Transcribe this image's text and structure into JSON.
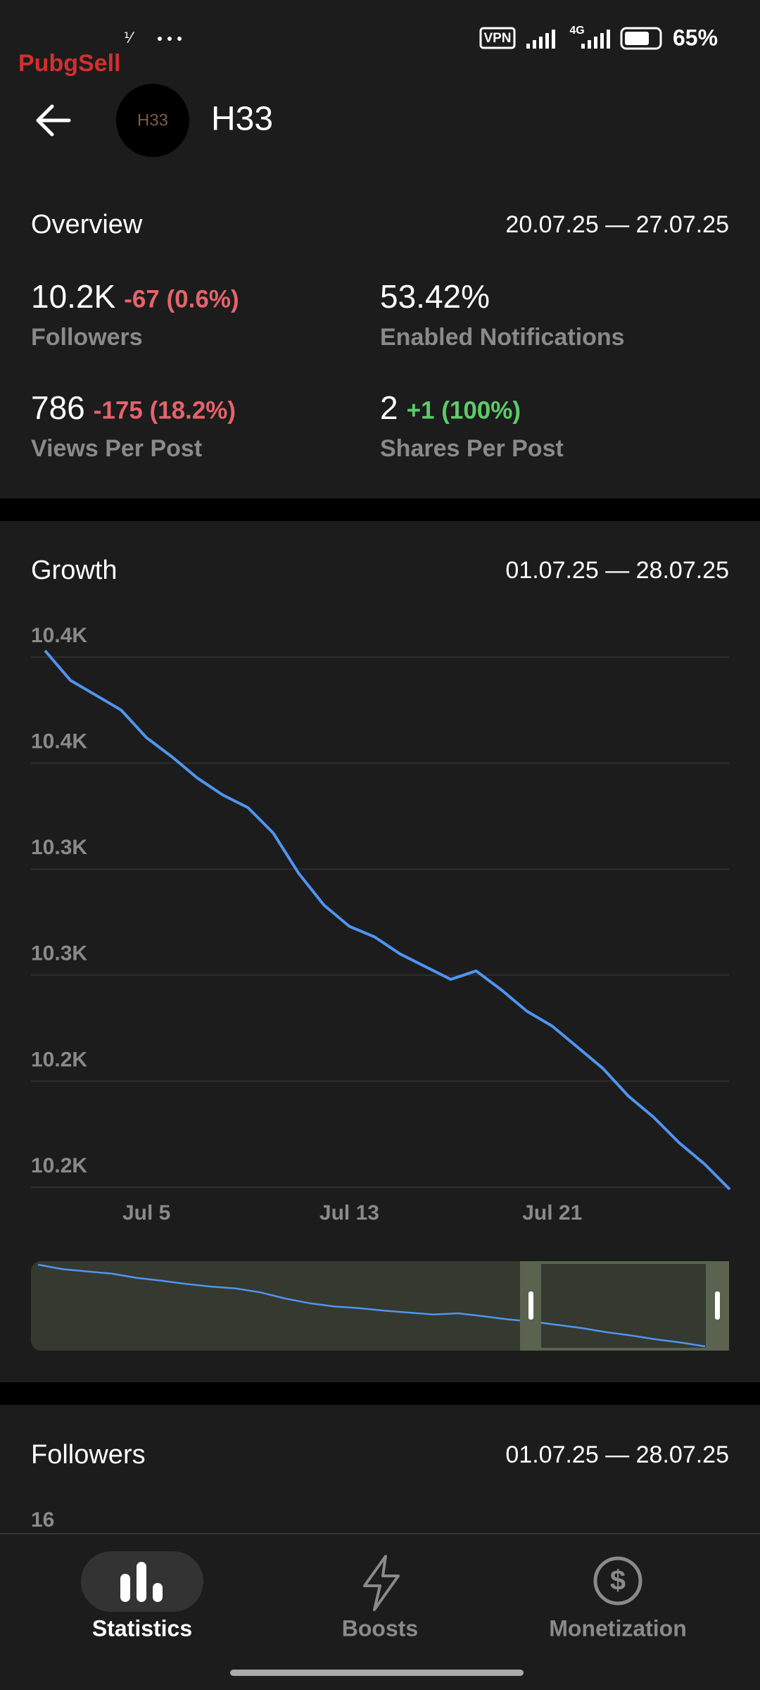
{
  "status_bar": {
    "watermark": "PubgSell",
    "vpn": "VPN",
    "network": "4G",
    "battery": "65%"
  },
  "header": {
    "avatar": "H33",
    "title": "H33"
  },
  "overview": {
    "title": "Overview",
    "date_range": "20.07.25 — 27.07.25",
    "stats": [
      {
        "value": "10.2K",
        "change": "-67 (0.6%)",
        "label": "Followers"
      },
      {
        "value": "53.42%",
        "label": "Enabled Notifications"
      },
      {
        "value": "786",
        "change": "-175 (18.2%)",
        "label": "Views Per Post"
      },
      {
        "value": "2",
        "change": "+1 (100%)",
        "label": "Shares Per Post"
      }
    ]
  },
  "chart_data": {
    "type": "line",
    "title": "Growth",
    "subtitle": "01.07.25 — 28.07.25",
    "categories": [
      null,
      null,
      null,
      null,
      "Jul 5",
      null,
      null,
      null,
      null,
      null,
      null,
      null,
      "Jul 13",
      null,
      null,
      null,
      null,
      null,
      null,
      null,
      "Jul 21",
      null,
      null,
      null,
      null,
      null,
      null,
      null
    ],
    "values": [
      10453,
      10439,
      10432,
      10425,
      10412,
      10403,
      10393,
      10385,
      10379,
      10367,
      10348,
      10333,
      10323,
      10318,
      10310,
      10304,
      10298,
      10302,
      10293,
      10283,
      10276,
      10266,
      10256,
      10243,
      10233,
      10221,
      10211,
      10199
    ],
    "color": "#4f95f0",
    "ylim": [
      10200,
      10450
    ],
    "yticks": [
      {
        "value": 10200,
        "label": "10.2K"
      },
      {
        "value": 10250,
        "label": "10.2K"
      },
      {
        "value": 10300,
        "label": "10.3K"
      },
      {
        "value": 10350,
        "label": "10.3K"
      },
      {
        "value": 10400,
        "label": "10.4K"
      },
      {
        "value": 10450,
        "label": "10.4K"
      }
    ],
    "grid": true
  },
  "followers": {
    "title": "Followers",
    "date_range": "01.07.25 — 28.07.25",
    "tick": 16
  },
  "nav": {
    "tabs": [
      "Statistics",
      "Boosts",
      "Monetization"
    ]
  }
}
